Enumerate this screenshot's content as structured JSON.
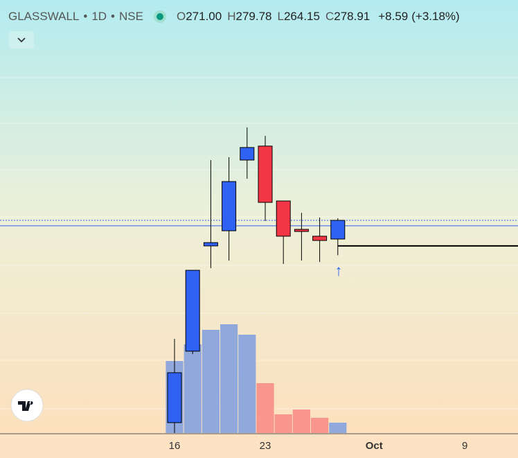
{
  "chart_data": {
    "type": "candlestick",
    "legend": {
      "symbol": "GLASSWALL",
      "interval": "1D",
      "exchange": "NSE",
      "fields": [
        {
          "key": "O",
          "value": 271.0,
          "label": "271.00"
        },
        {
          "key": "H",
          "value": 279.78,
          "label": "279.78"
        },
        {
          "key": "L",
          "value": 264.15,
          "label": "264.15"
        },
        {
          "key": "C",
          "value": 278.91,
          "label": "278.91"
        }
      ],
      "change": {
        "value": 8.59,
        "label": "+8.59"
      },
      "change_pct": {
        "value": 3.18,
        "label": "(+3.18%)"
      }
    },
    "categories": [
      "16",
      null,
      null,
      null,
      null,
      "23",
      null,
      null,
      null,
      null,
      null,
      "Oct",
      null,
      null,
      null,
      null,
      "9",
      null,
      null
    ],
    "open": [
      193.4,
      223.6,
      268.1,
      274.5,
      304.4,
      310.3,
      287.1,
      275.1,
      272.2,
      271.0,
      null,
      null,
      null,
      null,
      null,
      null,
      null,
      null,
      null
    ],
    "high": [
      228.8,
      257.8,
      304.4,
      305.6,
      318.2,
      314.6,
      287.1,
      282.1,
      280.1,
      279.78,
      null,
      null,
      null,
      null,
      null,
      null,
      null,
      null,
      null
    ],
    "low": [
      189.0,
      222.4,
      258.7,
      261.9,
      296.5,
      278.6,
      260.5,
      261.9,
      261.3,
      264.15,
      null,
      null,
      null,
      null,
      null,
      null,
      null,
      null,
      null
    ],
    "close": [
      214.5,
      257.8,
      269.5,
      295.3,
      309.7,
      286.5,
      272.2,
      274.2,
      270.4,
      278.91,
      null,
      null,
      null,
      null,
      null,
      null,
      null,
      null,
      null
    ],
    "volume": [
      104,
      128,
      149,
      157,
      142,
      72,
      27,
      34,
      22,
      15,
      null,
      null,
      null,
      null,
      null,
      null,
      null,
      null,
      null
    ],
    "up_color": "#2f62f2",
    "down_color": "#f23645",
    "volume_up_color": "#90a8dc",
    "volume_down_color": "#f8958d",
    "price_lines": [
      {
        "value": 278.91,
        "style": "dotted",
        "color": "#2f62f2"
      },
      {
        "value": 276.6,
        "style": "solid",
        "color": "#2f62f2"
      },
      {
        "value": 268.1,
        "style": "solid",
        "color": "#000000"
      }
    ]
  }
}
